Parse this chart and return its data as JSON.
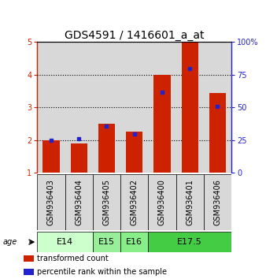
{
  "title": "GDS4591 / 1416601_a_at",
  "samples": [
    "GSM936403",
    "GSM936404",
    "GSM936405",
    "GSM936402",
    "GSM936400",
    "GSM936401",
    "GSM936406"
  ],
  "red_values": [
    2.0,
    1.9,
    2.5,
    2.25,
    4.0,
    5.0,
    3.45
  ],
  "blue_values": [
    2.0,
    2.05,
    2.42,
    2.18,
    3.47,
    4.18,
    3.02
  ],
  "age_groups": [
    {
      "label": "E14",
      "start": 0,
      "end": 2,
      "color": "#ccffcc"
    },
    {
      "label": "E15",
      "start": 2,
      "end": 3,
      "color": "#99ee99"
    },
    {
      "label": "E16",
      "start": 3,
      "end": 4,
      "color": "#88ee88"
    },
    {
      "label": "E17.5",
      "start": 4,
      "end": 7,
      "color": "#44cc44"
    }
  ],
  "ylim": [
    1,
    5
  ],
  "y_ticks_left": [
    1,
    2,
    3,
    4,
    5
  ],
  "y_ticks_right": [
    0,
    25,
    50,
    75,
    100
  ],
  "bar_width": 0.6,
  "red_color": "#cc2200",
  "blue_color": "#2222cc",
  "title_fontsize": 10,
  "tick_fontsize": 7,
  "sample_fontsize": 7,
  "age_label_fontsize": 8,
  "legend_fontsize": 7,
  "bg_color": "#d8d8d8",
  "grid_color": "#000000",
  "spine_color": "#000000"
}
